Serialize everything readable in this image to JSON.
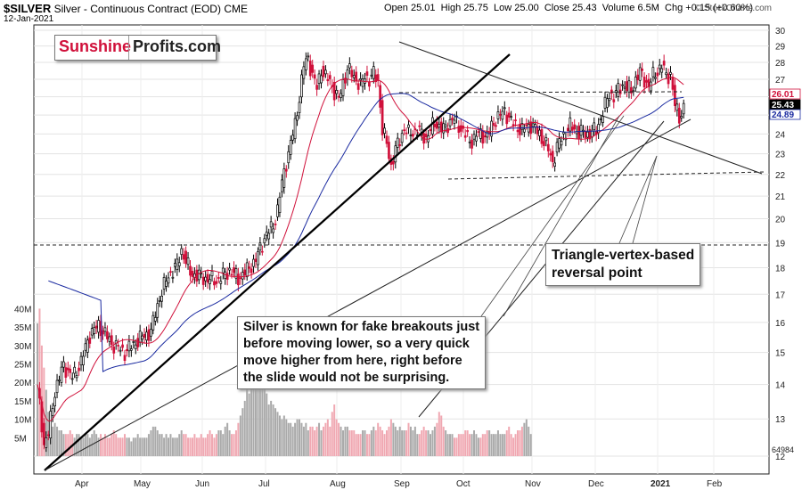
{
  "header": {
    "symbol": "$SILVER",
    "description": "Silver - Continuous Contract (EOD)",
    "exchange": "CME",
    "date": "12-Jan-2021",
    "open": "Open 25.01",
    "high": "High 25.75",
    "low": "Low 25.00",
    "close": "Close 25.43",
    "volume": "Volume 6.5M",
    "change": "Chg +0.15 (+0.60%)",
    "watermark": "© StockCharts.com"
  },
  "logo": {
    "part1": "Sunshine",
    "part2": "Profits.com"
  },
  "annotations": {
    "fake_breakouts": "Silver is known for fake breakouts just\nbefore moving lower, so a very quick\nmove higher from here, right before\nthe slide would not be surprising.",
    "vertex": "Triangle-vertex-based\nreversal point"
  },
  "colors": {
    "up": "#000000",
    "down": "#d0103a",
    "ma_short": "#d0103a",
    "ma_long": "#1a2aa0",
    "vol_up": "#aaaaaa",
    "vol_down": "#f0a8b2"
  },
  "chart_data": {
    "type": "candlestick",
    "x_ticks": [
      "Apr",
      "May",
      "Jun",
      "Jul",
      "Aug",
      "Sep",
      "Oct",
      "Nov",
      "Dec",
      "2021",
      "Feb"
    ],
    "y_ticks": [
      12,
      13,
      14,
      15,
      16,
      17,
      18,
      19,
      20,
      21,
      22,
      23,
      24,
      25,
      26,
      27,
      28,
      29,
      30
    ],
    "price_labels": {
      "upper_band": "26.01",
      "close": "25.43",
      "lower_band": "24.89"
    },
    "volume_ticks": [
      "5M",
      "10M",
      "15M",
      "20M",
      "25M",
      "30M",
      "35M",
      "40M"
    ],
    "volume_label": "64984",
    "ylim": [
      12,
      30
    ],
    "scale": "log",
    "horizontal_level": 18.9,
    "close_path": [
      [
        0,
        14.0
      ],
      [
        3,
        12.3
      ],
      [
        5,
        12.6
      ],
      [
        8,
        13.8
      ],
      [
        12,
        14.6
      ],
      [
        16,
        14.2
      ],
      [
        20,
        14.7
      ],
      [
        24,
        15.6
      ],
      [
        28,
        15.9
      ],
      [
        34,
        15.3
      ],
      [
        40,
        15.0
      ],
      [
        46,
        15.4
      ],
      [
        52,
        15.7
      ],
      [
        56,
        16.9
      ],
      [
        60,
        17.7
      ],
      [
        64,
        18.1
      ],
      [
        66,
        18.7
      ],
      [
        70,
        17.8
      ],
      [
        76,
        17.6
      ],
      [
        82,
        17.5
      ],
      [
        88,
        17.9
      ],
      [
        92,
        17.6
      ],
      [
        96,
        17.9
      ],
      [
        100,
        18.3
      ],
      [
        104,
        19.2
      ],
      [
        108,
        19.7
      ],
      [
        110,
        20.4
      ],
      [
        112,
        21.6
      ],
      [
        114,
        22.6
      ],
      [
        116,
        23.5
      ],
      [
        118,
        24.5
      ],
      [
        120,
        26.0
      ],
      [
        122,
        27.8
      ],
      [
        124,
        28.3
      ],
      [
        126,
        27.2
      ],
      [
        128,
        26.5
      ],
      [
        130,
        27.6
      ],
      [
        132,
        27.1
      ],
      [
        134,
        26.9
      ],
      [
        136,
        26.3
      ],
      [
        138,
        25.8
      ],
      [
        140,
        26.8
      ],
      [
        142,
        27.6
      ],
      [
        144,
        27.3
      ],
      [
        146,
        27.0
      ],
      [
        148,
        26.6
      ],
      [
        150,
        27.2
      ],
      [
        152,
        27.0
      ],
      [
        154,
        27.3
      ],
      [
        156,
        26.9
      ],
      [
        158,
        24.2
      ],
      [
        160,
        23.5
      ],
      [
        162,
        22.4
      ],
      [
        164,
        23.2
      ],
      [
        166,
        23.7
      ],
      [
        168,
        24.3
      ],
      [
        170,
        24.0
      ],
      [
        174,
        24.2
      ],
      [
        178,
        23.8
      ],
      [
        182,
        24.6
      ],
      [
        186,
        24.2
      ],
      [
        190,
        24.8
      ],
      [
        194,
        24.3
      ],
      [
        198,
        23.6
      ],
      [
        202,
        24.0
      ],
      [
        206,
        23.9
      ],
      [
        210,
        24.8
      ],
      [
        214,
        25.2
      ],
      [
        218,
        24.5
      ],
      [
        222,
        24.2
      ],
      [
        226,
        24.5
      ],
      [
        230,
        24.0
      ],
      [
        234,
        23.2
      ],
      [
        236,
        22.6
      ],
      [
        238,
        23.3
      ],
      [
        240,
        23.8
      ],
      [
        244,
        24.4
      ],
      [
        248,
        24.1
      ],
      [
        252,
        24.0
      ],
      [
        256,
        24.2
      ],
      [
        260,
        25.5
      ],
      [
        262,
        26.2
      ],
      [
        264,
        26.0
      ],
      [
        268,
        26.7
      ],
      [
        272,
        26.3
      ],
      [
        274,
        27.0
      ],
      [
        276,
        27.4
      ],
      [
        280,
        26.6
      ],
      [
        282,
        27.2
      ],
      [
        286,
        27.8
      ],
      [
        288,
        27.2
      ],
      [
        290,
        27.3
      ],
      [
        292,
        25.5
      ],
      [
        294,
        24.9
      ],
      [
        296,
        25.4
      ]
    ],
    "volume_heights_M": [
      36,
      40,
      30,
      24,
      18,
      12,
      10,
      8,
      9,
      8,
      7,
      7,
      6,
      6,
      6,
      7,
      6,
      5,
      6,
      6,
      5,
      5,
      6,
      6,
      5,
      6,
      7,
      6,
      5,
      6,
      5,
      6,
      5,
      5,
      6,
      7,
      6,
      5,
      5,
      5,
      6,
      5,
      5,
      4,
      5,
      5,
      6,
      5,
      5,
      5,
      5,
      6,
      7,
      8,
      8,
      7,
      6,
      6,
      5,
      6,
      5,
      6,
      5,
      5,
      5,
      6,
      7,
      6,
      6,
      5,
      5,
      5,
      6,
      5,
      5,
      6,
      5,
      5,
      6,
      7,
      6,
      5,
      6,
      7,
      7,
      6,
      8,
      9,
      7,
      6,
      6,
      7,
      9,
      11,
      13,
      15,
      20,
      17,
      19,
      24,
      28,
      30,
      26,
      22,
      19,
      17,
      14,
      15,
      14,
      13,
      12,
      11,
      10,
      11,
      10,
      9,
      9,
      8,
      9,
      10,
      10,
      9,
      8,
      9,
      7,
      8,
      8,
      7,
      8,
      9,
      7,
      8,
      9,
      10,
      8,
      12,
      14,
      10,
      9,
      8,
      7,
      8,
      8,
      7,
      7,
      7,
      6,
      6,
      6,
      7,
      7,
      6,
      6,
      7,
      8,
      7,
      9,
      8,
      7,
      6,
      7,
      8,
      10,
      9,
      8,
      7,
      8,
      7,
      7,
      7,
      9,
      8,
      7,
      8,
      6,
      6,
      7,
      8,
      7,
      7,
      6,
      7,
      8,
      9,
      12,
      11,
      8,
      7,
      6,
      6,
      6,
      5,
      5,
      6,
      6,
      6,
      7,
      7,
      6,
      6,
      7,
      6,
      5,
      5,
      6,
      6,
      7,
      7,
      6,
      6,
      6,
      7,
      6,
      6,
      6,
      7,
      8,
      6,
      5,
      6,
      7,
      7,
      8,
      9,
      10,
      8,
      6
    ]
  }
}
